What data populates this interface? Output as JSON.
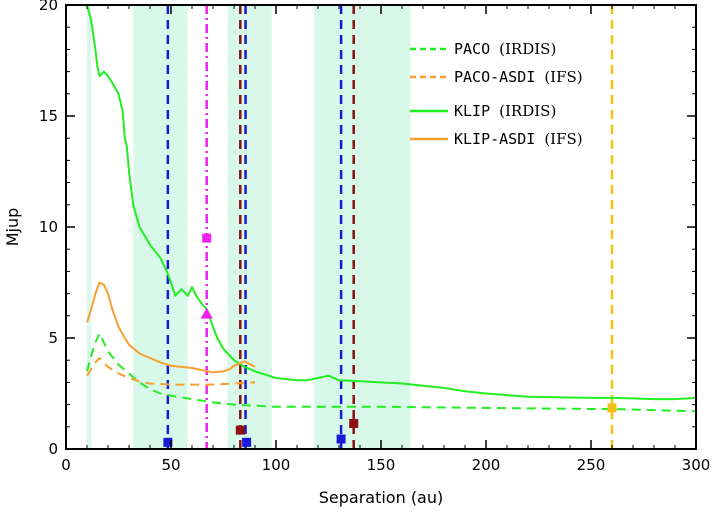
{
  "chart_data": {
    "type": "line",
    "title": "",
    "xlabel": "Separation (au)",
    "ylabel": "Mjup",
    "xlim": [
      0,
      300
    ],
    "ylim": [
      0,
      20
    ],
    "x_ticks": [
      0,
      50,
      100,
      150,
      200,
      250,
      300
    ],
    "y_ticks": [
      0,
      5,
      10,
      15,
      20
    ],
    "grid": false,
    "legend_position": "top-right",
    "colors": {
      "shade": "#d8f8ea",
      "green": "#22ee22",
      "orange": "#f5a030",
      "blue": "#1a1ad6",
      "magenta": "#ee22ee",
      "darkred": "#8b1010",
      "gold": "#f2c010"
    },
    "shaded_regions": [
      [
        10,
        12
      ],
      [
        32,
        58
      ],
      [
        77,
        98
      ],
      [
        118,
        164
      ]
    ],
    "series": [
      {
        "name": "PACO (IRDIS)",
        "color": "#22ee22",
        "dash": "dashed",
        "x": [
          10,
          12,
          14,
          16,
          18,
          20,
          25,
          30,
          35,
          40,
          45,
          50,
          60,
          70,
          80,
          100,
          150,
          200,
          250,
          260,
          280,
          300
        ],
        "y": [
          3.5,
          4.2,
          4.8,
          5.2,
          4.8,
          4.4,
          3.8,
          3.4,
          3.0,
          2.7,
          2.5,
          2.4,
          2.25,
          2.1,
          2.0,
          1.9,
          1.9,
          1.85,
          1.8,
          1.8,
          1.75,
          1.7
        ]
      },
      {
        "name": "PACO-ASDI (IFS)",
        "color": "#f5a030",
        "dash": "dashed",
        "x": [
          10,
          12,
          14,
          16,
          18,
          20,
          25,
          30,
          35,
          40,
          50,
          60,
          70,
          80,
          90
        ],
        "y": [
          3.3,
          3.6,
          3.9,
          4.1,
          3.9,
          3.7,
          3.4,
          3.2,
          3.05,
          2.95,
          2.9,
          2.9,
          2.9,
          2.95,
          3.0
        ]
      },
      {
        "name": "KLIP (IRDIS)",
        "color": "#22ee22",
        "dash": "solid",
        "x": [
          10,
          12,
          14,
          15,
          16,
          18,
          20,
          22,
          25,
          27,
          28,
          29,
          30,
          32,
          35,
          40,
          45,
          48,
          50,
          52,
          55,
          58,
          60,
          62,
          65,
          67,
          70,
          72,
          75,
          78,
          80,
          85,
          90,
          100,
          110,
          115,
          120,
          125,
          130,
          140,
          150,
          160,
          170,
          180,
          190,
          200,
          220,
          250,
          260,
          270,
          280,
          290,
          300
        ],
        "y": [
          20,
          19.3,
          18,
          17.2,
          16.8,
          17.0,
          16.8,
          16.5,
          16.0,
          15.2,
          14.0,
          13.6,
          12.5,
          11.0,
          10.0,
          9.2,
          8.6,
          8.0,
          7.5,
          6.9,
          7.2,
          6.9,
          7.3,
          6.9,
          6.5,
          6.3,
          5.5,
          5.0,
          4.5,
          4.2,
          4.0,
          3.7,
          3.5,
          3.2,
          3.1,
          3.1,
          3.2,
          3.3,
          3.1,
          3.05,
          3.0,
          2.95,
          2.85,
          2.75,
          2.6,
          2.5,
          2.35,
          2.3,
          2.3,
          2.28,
          2.25,
          2.25,
          2.3
        ]
      },
      {
        "name": "KLIP-ASDI (IFS)",
        "color": "#f5a030",
        "dash": "solid",
        "x": [
          10,
          12,
          14,
          16,
          18,
          20,
          22,
          25,
          28,
          30,
          35,
          40,
          45,
          50,
          55,
          60,
          65,
          70,
          75,
          78,
          80,
          85,
          88,
          90
        ],
        "y": [
          5.7,
          6.3,
          7.0,
          7.5,
          7.4,
          7.0,
          6.3,
          5.5,
          5.0,
          4.7,
          4.3,
          4.1,
          3.9,
          3.75,
          3.7,
          3.65,
          3.55,
          3.45,
          3.5,
          3.6,
          3.75,
          3.95,
          3.8,
          3.7
        ]
      }
    ],
    "vertical_lines": [
      {
        "x": 48.5,
        "color": "#1a1ad6",
        "style": "dashed"
      },
      {
        "x": 67,
        "color": "#ee22ee",
        "style": "dashdot"
      },
      {
        "x": 83,
        "color": "#8b1010",
        "style": "dashed"
      },
      {
        "x": 85.5,
        "color": "#1a1ad6",
        "style": "dashed"
      },
      {
        "x": 131,
        "color": "#1a1ad6",
        "style": "dashed"
      },
      {
        "x": 137,
        "color": "#8b1010",
        "style": "dashed"
      },
      {
        "x": 260,
        "color": "#f2c010",
        "style": "dashed"
      }
    ],
    "markers": [
      {
        "x": 48.5,
        "y": 0.3,
        "shape": "square",
        "color": "#1a1ad6"
      },
      {
        "x": 67,
        "y": 9.5,
        "shape": "square",
        "color": "#ee22ee"
      },
      {
        "x": 67,
        "y": 6.1,
        "shape": "triangle",
        "color": "#ee22ee"
      },
      {
        "x": 83,
        "y": 0.85,
        "shape": "square",
        "color": "#8b1010"
      },
      {
        "x": 86,
        "y": 0.3,
        "shape": "square",
        "color": "#1a1ad6"
      },
      {
        "x": 131,
        "y": 0.45,
        "shape": "square",
        "color": "#1a1ad6"
      },
      {
        "x": 137,
        "y": 1.15,
        "shape": "square",
        "color": "#8b1010"
      },
      {
        "x": 260,
        "y": 1.85,
        "shape": "square",
        "color": "#f2c010"
      }
    ],
    "legend": [
      {
        "code": "PACO",
        "instrument": "(IRDIS)",
        "color": "#22ee22",
        "dash": "dashed"
      },
      {
        "code": "PACO-ASDI",
        "instrument": "(IFS)",
        "color": "#f5a030",
        "dash": "dashed"
      },
      {
        "code": "KLIP",
        "instrument": "(IRDIS)",
        "color": "#22ee22",
        "dash": "solid"
      },
      {
        "code": "KLIP-ASDI",
        "instrument": "(IFS)",
        "color": "#f5a030",
        "dash": "solid"
      }
    ]
  }
}
